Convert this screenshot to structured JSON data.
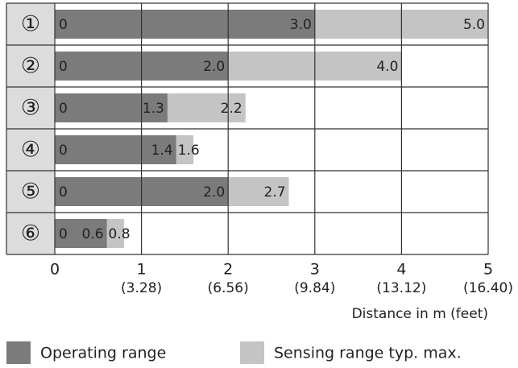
{
  "chart_data": {
    "type": "bar",
    "categories": [
      "①",
      "②",
      "③",
      "④",
      "⑤",
      "⑥"
    ],
    "bar_start": 0,
    "series": [
      {
        "name": "Sensing range typ. max.",
        "color": "#c4c4c4",
        "values": [
          5.0,
          4.0,
          2.2,
          1.6,
          2.7,
          0.8
        ],
        "value_labels": [
          "5.0",
          "4.0",
          "2.2",
          "1.6",
          "2.7",
          "0.8"
        ]
      },
      {
        "name": "Operating range",
        "color": "#7b7b7b",
        "values": [
          3.0,
          2.0,
          1.3,
          1.4,
          2.0,
          0.6
        ],
        "value_labels": [
          "3.0",
          "2.0",
          "1.3",
          "1.4",
          "2.0",
          "0.6"
        ]
      }
    ],
    "xlim": [
      0,
      5
    ],
    "xticks": [
      0,
      1,
      2,
      3,
      4,
      5
    ],
    "xtick_secondary_labels": [
      null,
      "(3.28)",
      "(6.56)",
      "(9.84)",
      "(13.12)",
      "(16.40)"
    ],
    "xlabel": "Distance in m (feet)",
    "grid": true
  }
}
